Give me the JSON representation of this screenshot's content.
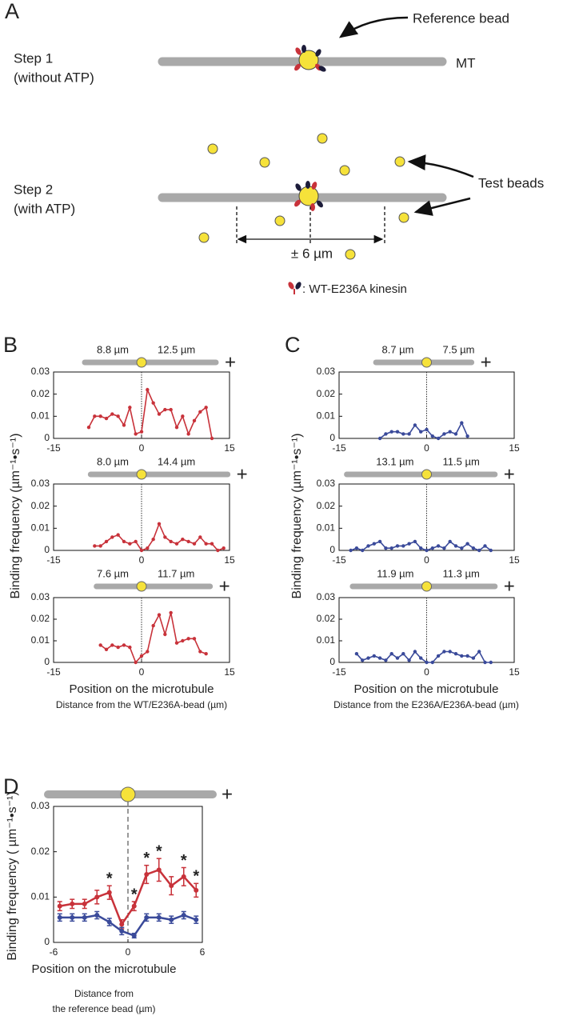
{
  "panels": [
    "A",
    "B",
    "C",
    "D"
  ],
  "diagram": {
    "step1": [
      "Step 1",
      "(without ATP)"
    ],
    "step2": [
      "Step 2",
      "(with ATP)"
    ],
    "reference_bead": "Reference bead",
    "mt": "MT",
    "test_beads": "Test beads",
    "range": "± 6 µm",
    "legend": ": WT-E236A kinesin"
  },
  "chart_data": [
    {
      "type": "line",
      "bar_labels": [
        "8.8 µm",
        "12.5 µm"
      ],
      "plus": "+",
      "x": [
        -9,
        -8,
        -7,
        -6,
        -5,
        -4,
        -3,
        -2,
        -1,
        0,
        1,
        2,
        3,
        4,
        5,
        6,
        7,
        8,
        9,
        10,
        11,
        12
      ],
      "series": [
        {
          "color": "#c8323a",
          "values": [
            0.005,
            0.01,
            0.01,
            0.009,
            0.011,
            0.01,
            0.006,
            0.014,
            0.002,
            0.003,
            0.022,
            0.016,
            0.011,
            0.013,
            0.013,
            0.005,
            0.01,
            0.002,
            0.008,
            0.012,
            0.014,
            0
          ]
        }
      ],
      "xlim": [
        -15,
        15
      ],
      "xticks": [
        -15,
        0,
        15
      ],
      "ylim": [
        0,
        0.03
      ],
      "yticks": [
        0,
        0.01,
        0.02,
        0.03
      ]
    },
    {
      "type": "line",
      "bar_labels": [
        "8.0 µm",
        "14.4 µm"
      ],
      "plus": "+",
      "ylabel": "Binding frequency (µm⁻¹•s⁻¹)",
      "x": [
        -8,
        -7,
        -6,
        -5,
        -4,
        -3,
        -2,
        -1,
        0,
        1,
        2,
        3,
        4,
        5,
        6,
        7,
        8,
        9,
        10,
        11,
        12,
        13,
        14
      ],
      "series": [
        {
          "color": "#c8323a",
          "values": [
            0.002,
            0.002,
            0.004,
            0.006,
            0.007,
            0.004,
            0.003,
            0.004,
            0,
            0.001,
            0.005,
            0.012,
            0.006,
            0.004,
            0.003,
            0.005,
            0.004,
            0.003,
            0.006,
            0.003,
            0.003,
            0,
            0.001
          ]
        }
      ],
      "xlim": [
        -15,
        15
      ],
      "xticks": [
        -15,
        0,
        15
      ],
      "ylim": [
        0,
        0.03
      ],
      "yticks": [
        0,
        0.01,
        0.02,
        0.03
      ]
    },
    {
      "type": "line",
      "bar_labels": [
        "7.6 µm",
        "11.7 µm"
      ],
      "plus": "+",
      "xlabel": "Position on the microtubule",
      "xlabel_sub": [
        "Distance from the WT/E236A-bead (µm)"
      ],
      "x": [
        -7,
        -6,
        -5,
        -4,
        -3,
        -2,
        -1,
        0,
        1,
        2,
        3,
        4,
        5,
        6,
        7,
        8,
        9,
        10,
        11
      ],
      "series": [
        {
          "color": "#c8323a",
          "values": [
            0.008,
            0.006,
            0.008,
            0.007,
            0.008,
            0.007,
            0,
            0.003,
            0.005,
            0.017,
            0.022,
            0.013,
            0.023,
            0.009,
            0.01,
            0.011,
            0.011,
            0.005,
            0.004
          ]
        }
      ],
      "xlim": [
        -15,
        15
      ],
      "xticks": [
        -15,
        0,
        15
      ],
      "ylim": [
        0,
        0.03
      ],
      "yticks": [
        0,
        0.01,
        0.02,
        0.03
      ]
    },
    {
      "type": "line",
      "bar_labels": [
        "8.7 µm",
        "7.5 µm"
      ],
      "plus": "+",
      "x": [
        -8,
        -7,
        -6,
        -5,
        -4,
        -3,
        -2,
        -1,
        0,
        1,
        2,
        3,
        4,
        5,
        6,
        7
      ],
      "series": [
        {
          "color": "#3a4a9a",
          "values": [
            0,
            0.002,
            0.003,
            0.003,
            0.002,
            0.002,
            0.006,
            0.003,
            0.004,
            0.001,
            0,
            0.002,
            0.003,
            0.002,
            0.007,
            0.001
          ]
        }
      ],
      "xlim": [
        -15,
        15
      ],
      "xticks": [
        -15,
        0,
        15
      ],
      "ylim": [
        0,
        0.03
      ],
      "yticks": [
        0,
        0.01,
        0.02,
        0.03
      ]
    },
    {
      "type": "line",
      "bar_labels": [
        "13.1 µm",
        "11.5 µm"
      ],
      "plus": "+",
      "ylabel": "Binding frequency (µm⁻¹•s⁻¹)",
      "x": [
        -13,
        -12,
        -11,
        -10,
        -9,
        -8,
        -7,
        -6,
        -5,
        -4,
        -3,
        -2,
        -1,
        0,
        1,
        2,
        3,
        4,
        5,
        6,
        7,
        8,
        9,
        10,
        11
      ],
      "series": [
        {
          "color": "#3a4a9a",
          "values": [
            0,
            0.001,
            0,
            0.002,
            0.003,
            0.004,
            0.001,
            0.001,
            0.002,
            0.002,
            0.003,
            0.004,
            0.001,
            0,
            0.001,
            0.002,
            0.001,
            0.004,
            0.002,
            0.001,
            0.003,
            0.001,
            0,
            0.002,
            0
          ]
        }
      ],
      "xlim": [
        -15,
        15
      ],
      "xticks": [
        -15,
        0,
        15
      ],
      "ylim": [
        0,
        0.03
      ],
      "yticks": [
        0,
        0.01,
        0.02,
        0.03
      ]
    },
    {
      "type": "line",
      "bar_labels": [
        "11.9 µm",
        "11.3 µm"
      ],
      "plus": "+",
      "xlabel": "Position on the microtubule",
      "xlabel_sub": [
        "Distance from the E236A/E236A-bead (µm)"
      ],
      "x": [
        -12,
        -11,
        -10,
        -9,
        -8,
        -7,
        -6,
        -5,
        -4,
        -3,
        -2,
        -1,
        0,
        1,
        2,
        3,
        4,
        5,
        6,
        7,
        8,
        9,
        10,
        11
      ],
      "series": [
        {
          "color": "#3a4a9a",
          "values": [
            0.004,
            0.001,
            0.002,
            0.003,
            0.002,
            0.001,
            0.004,
            0.002,
            0.004,
            0.001,
            0.005,
            0.002,
            0,
            0,
            0.003,
            0.005,
            0.005,
            0.004,
            0.003,
            0.003,
            0.002,
            0.005,
            0,
            0
          ]
        }
      ],
      "xlim": [
        -15,
        15
      ],
      "xticks": [
        -15,
        0,
        15
      ],
      "ylim": [
        0,
        0.03
      ],
      "yticks": [
        0,
        0.01,
        0.02,
        0.03
      ]
    },
    {
      "type": "errorline",
      "plus": "+",
      "ylabel": "Binding frequency ( µm⁻¹•s⁻¹)",
      "xlabel": "Position on the microtubule",
      "xlabel_sub": [
        "Distance from",
        "the reference bead (µm)"
      ],
      "x": [
        -5.5,
        -4.5,
        -3.5,
        -2.5,
        -1.5,
        -0.5,
        0.5,
        1.5,
        2.5,
        3.5,
        4.5,
        5.5
      ],
      "series": [
        {
          "color": "#c8323a",
          "values": [
            0.008,
            0.0085,
            0.0085,
            0.01,
            0.011,
            0.004,
            0.008,
            0.015,
            0.016,
            0.0125,
            0.0145,
            0.0115
          ],
          "errors": [
            0.001,
            0.001,
            0.001,
            0.0015,
            0.0015,
            0.001,
            0.001,
            0.002,
            0.0025,
            0.002,
            0.002,
            0.0015
          ]
        },
        {
          "color": "#3a4a9a",
          "values": [
            0.0055,
            0.0055,
            0.0055,
            0.006,
            0.0045,
            0.0025,
            0.0015,
            0.0055,
            0.0055,
            0.005,
            0.006,
            0.005
          ],
          "errors": [
            0.0008,
            0.0008,
            0.0008,
            0.0008,
            0.0008,
            0.0008,
            0.0005,
            0.0008,
            0.0008,
            0.0008,
            0.0008,
            0.0008
          ]
        }
      ],
      "annotations": [
        {
          "text": "*",
          "x": -1.5
        },
        {
          "text": "*",
          "x": 0.5
        },
        {
          "text": "*",
          "x": 1.5
        },
        {
          "text": "*",
          "x": 2.5
        },
        {
          "text": "*",
          "x": 4.5
        },
        {
          "text": "*",
          "x": 5.5
        }
      ],
      "xlim": [
        -6,
        6
      ],
      "xticks": [
        -6,
        0,
        6
      ],
      "ylim": [
        0,
        0.03
      ],
      "yticks": [
        0,
        0.01,
        0.02,
        0.03
      ]
    }
  ]
}
